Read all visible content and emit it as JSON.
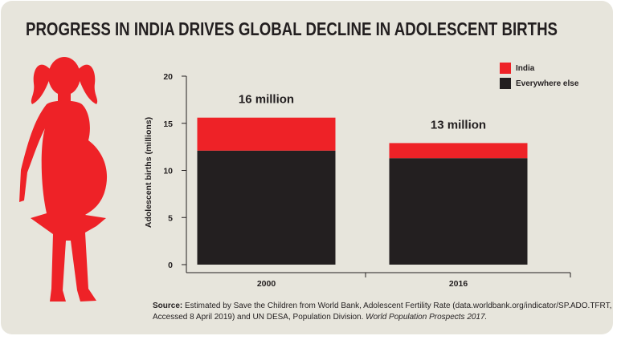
{
  "chart_data": {
    "type": "stacked-bar",
    "title": "PROGRESS IN INDIA DRIVES GLOBAL DECLINE IN ADOLESCENT BIRTHS",
    "y_label": "Adolescent births (millions)",
    "categories": [
      "2000",
      "2016"
    ],
    "series": [
      {
        "name": "India",
        "color": "#ee2227",
        "values": [
          3.5,
          1.6
        ]
      },
      {
        "name": "Everywhere else",
        "color": "#231f20",
        "values": [
          12.1,
          11.3
        ]
      }
    ],
    "annotations": [
      "16 million",
      "13 million"
    ],
    "ylim": [
      0,
      20
    ],
    "yticks": [
      0,
      5,
      10,
      15,
      20
    ],
    "legend": "top-right",
    "source": {
      "label": "Source:",
      "line1": "Estimated by Save the Children from World Bank, Adolescent Fertility Rate (data.worldbank.org/indicator/SP.ADO.TFRT,",
      "line2": "Accessed 8 April 2019) and UN DESA, Population Division.",
      "italic": "World Population Prospects 2017."
    }
  }
}
